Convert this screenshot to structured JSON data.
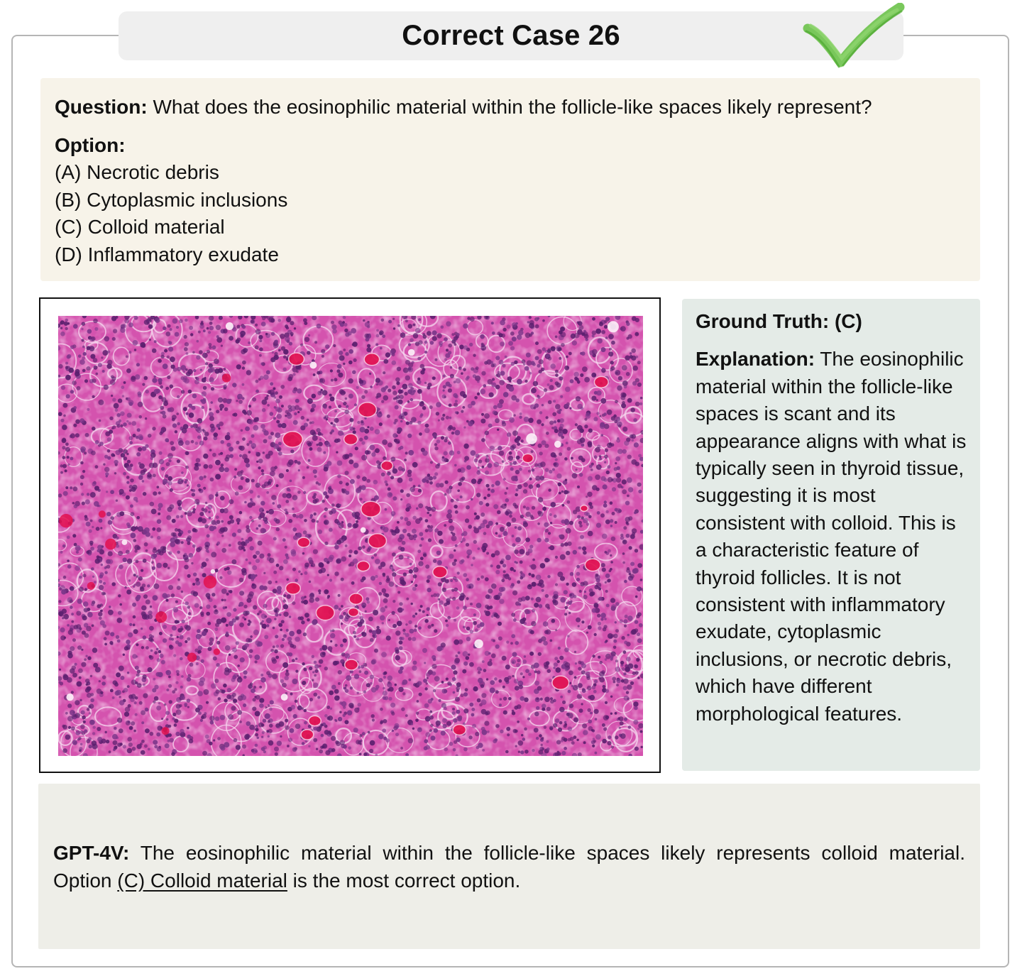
{
  "title": "Correct Case 26",
  "status_icon": "check-mark-icon",
  "colors": {
    "title_bg": "#efefef",
    "check_green": "#6cc24a",
    "question_bg": "#f7f3e9",
    "ground_truth_bg": "#e4ebe7",
    "answer_bg": "#eeeee8",
    "tissue_pink": "#d94fb0",
    "nucleus_purple": "#5a1f6e"
  },
  "question": {
    "label": "Question:",
    "text": " What does the eosinophilic material within the follicle-like spaces likely represent?"
  },
  "options": {
    "label": "Option:",
    "items": [
      "(A) Necrotic debris",
      "(B) Cytoplasmic inclusions",
      "(C) Colloid material",
      "(D) Inflammatory exudate"
    ]
  },
  "image": {
    "description_icon": "histology-slide-image"
  },
  "ground_truth": {
    "label": "Ground Truth: (C)",
    "explanation_label": "Explanation:",
    "explanation_text": " The eosinophilic material within the follicle-like spaces is scant and its appearance aligns with what is typically seen in thyroid tissue, suggesting it is most consistent with colloid. This is a characteristic feature of thyroid follicles. It is not consistent with inflammatory exudate, cytoplasmic inclusions, or necrotic debris, which have different morphological features."
  },
  "answer": {
    "model_label": "GPT-4V:",
    "text_line1": " The eosinophilic material within the follicle-like spaces likely represents colloid material.",
    "text_prefix": "Option ",
    "highlight": "(C) Colloid material",
    "text_suffix": " is the most correct option."
  }
}
